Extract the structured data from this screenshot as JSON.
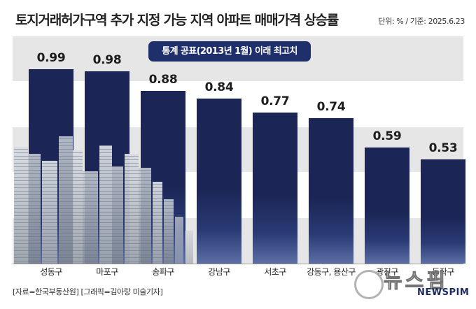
{
  "header": {
    "title": "토지거래허가구역 추가 지정 가능 지역 아파트 매매가격 상승률",
    "unit_note": "단위: % / 기준: 2025.6.23"
  },
  "annotation": "통계 공표(2013년 1월) 이래 최고치",
  "source": "[자료=한국부동산원] [그래픽=김아랑 미술기자]",
  "logo": {
    "korean": "뉴스핌",
    "english": "NEWSPIM"
  },
  "colors": {
    "bar": "#1b2656",
    "banner": "#1f2f6b",
    "band": "#e6e6e6"
  },
  "chart_data": {
    "type": "bar",
    "title": "토지거래허가구역 추가 지정 가능 지역 아파트 매매가격 상승률",
    "categories": [
      "성동구",
      "마포구",
      "송파구",
      "강남구",
      "서초구",
      "강동구, 용산구",
      "광진구",
      "동작구"
    ],
    "values": [
      0.99,
      0.98,
      0.88,
      0.84,
      0.77,
      0.74,
      0.59,
      0.53
    ],
    "value_labels": [
      "0.99",
      "0.98",
      "0.88",
      "0.84",
      "0.77",
      "0.74",
      "0.59",
      "0.53"
    ],
    "xlabel": "",
    "ylabel": "",
    "ylim": [
      0,
      1.25
    ],
    "grid": "alternating horizontal bands",
    "legend": "none"
  }
}
